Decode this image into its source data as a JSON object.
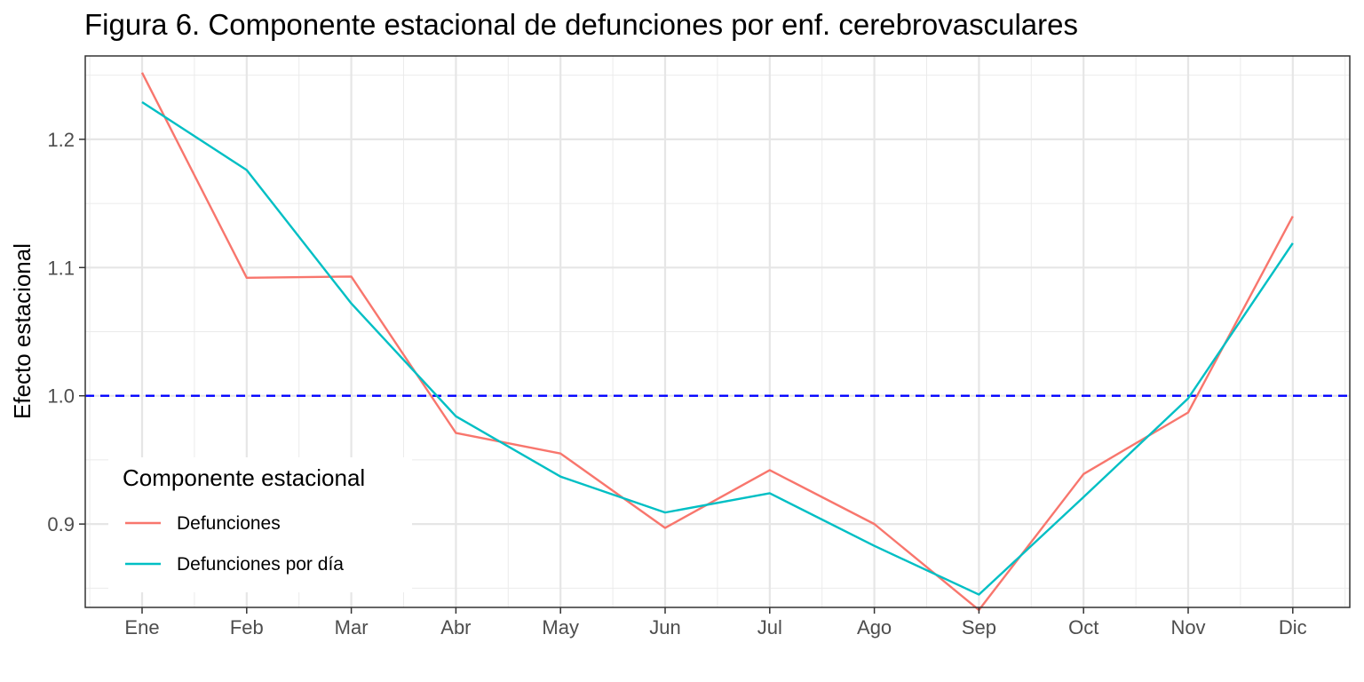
{
  "chart_data": {
    "type": "line",
    "title": "Figura 6. Componente estacional de defunciones por enf. cerebrovasculares",
    "xlabel": "",
    "ylabel": "Efecto estacional",
    "categories": [
      "Ene",
      "Feb",
      "Mar",
      "Abr",
      "May",
      "Jun",
      "Jul",
      "Ago",
      "Sep",
      "Oct",
      "Nov",
      "Dic"
    ],
    "ylim": [
      0.835,
      1.265
    ],
    "yticks": [
      "0.9",
      "1.0",
      "1.1",
      "1.2"
    ],
    "ytick_values": [
      0.9,
      1.0,
      1.1,
      1.2
    ],
    "grid": true,
    "reference_line": {
      "y": 1.0,
      "style": "dashed",
      "color": "#0000FF"
    },
    "legend": {
      "title": "Componente estacional",
      "position": "bottom-left"
    },
    "series": [
      {
        "name": "Defunciones",
        "color": "#F8766D",
        "values": [
          1.252,
          1.092,
          1.093,
          0.971,
          0.955,
          0.897,
          0.942,
          0.9,
          0.833,
          0.939,
          0.987,
          1.14
        ]
      },
      {
        "name": "Defunciones por día",
        "color": "#00BFC4",
        "values": [
          1.229,
          1.176,
          1.072,
          0.984,
          0.937,
          0.909,
          0.924,
          0.883,
          0.845,
          0.921,
          0.998,
          1.119
        ]
      }
    ]
  }
}
